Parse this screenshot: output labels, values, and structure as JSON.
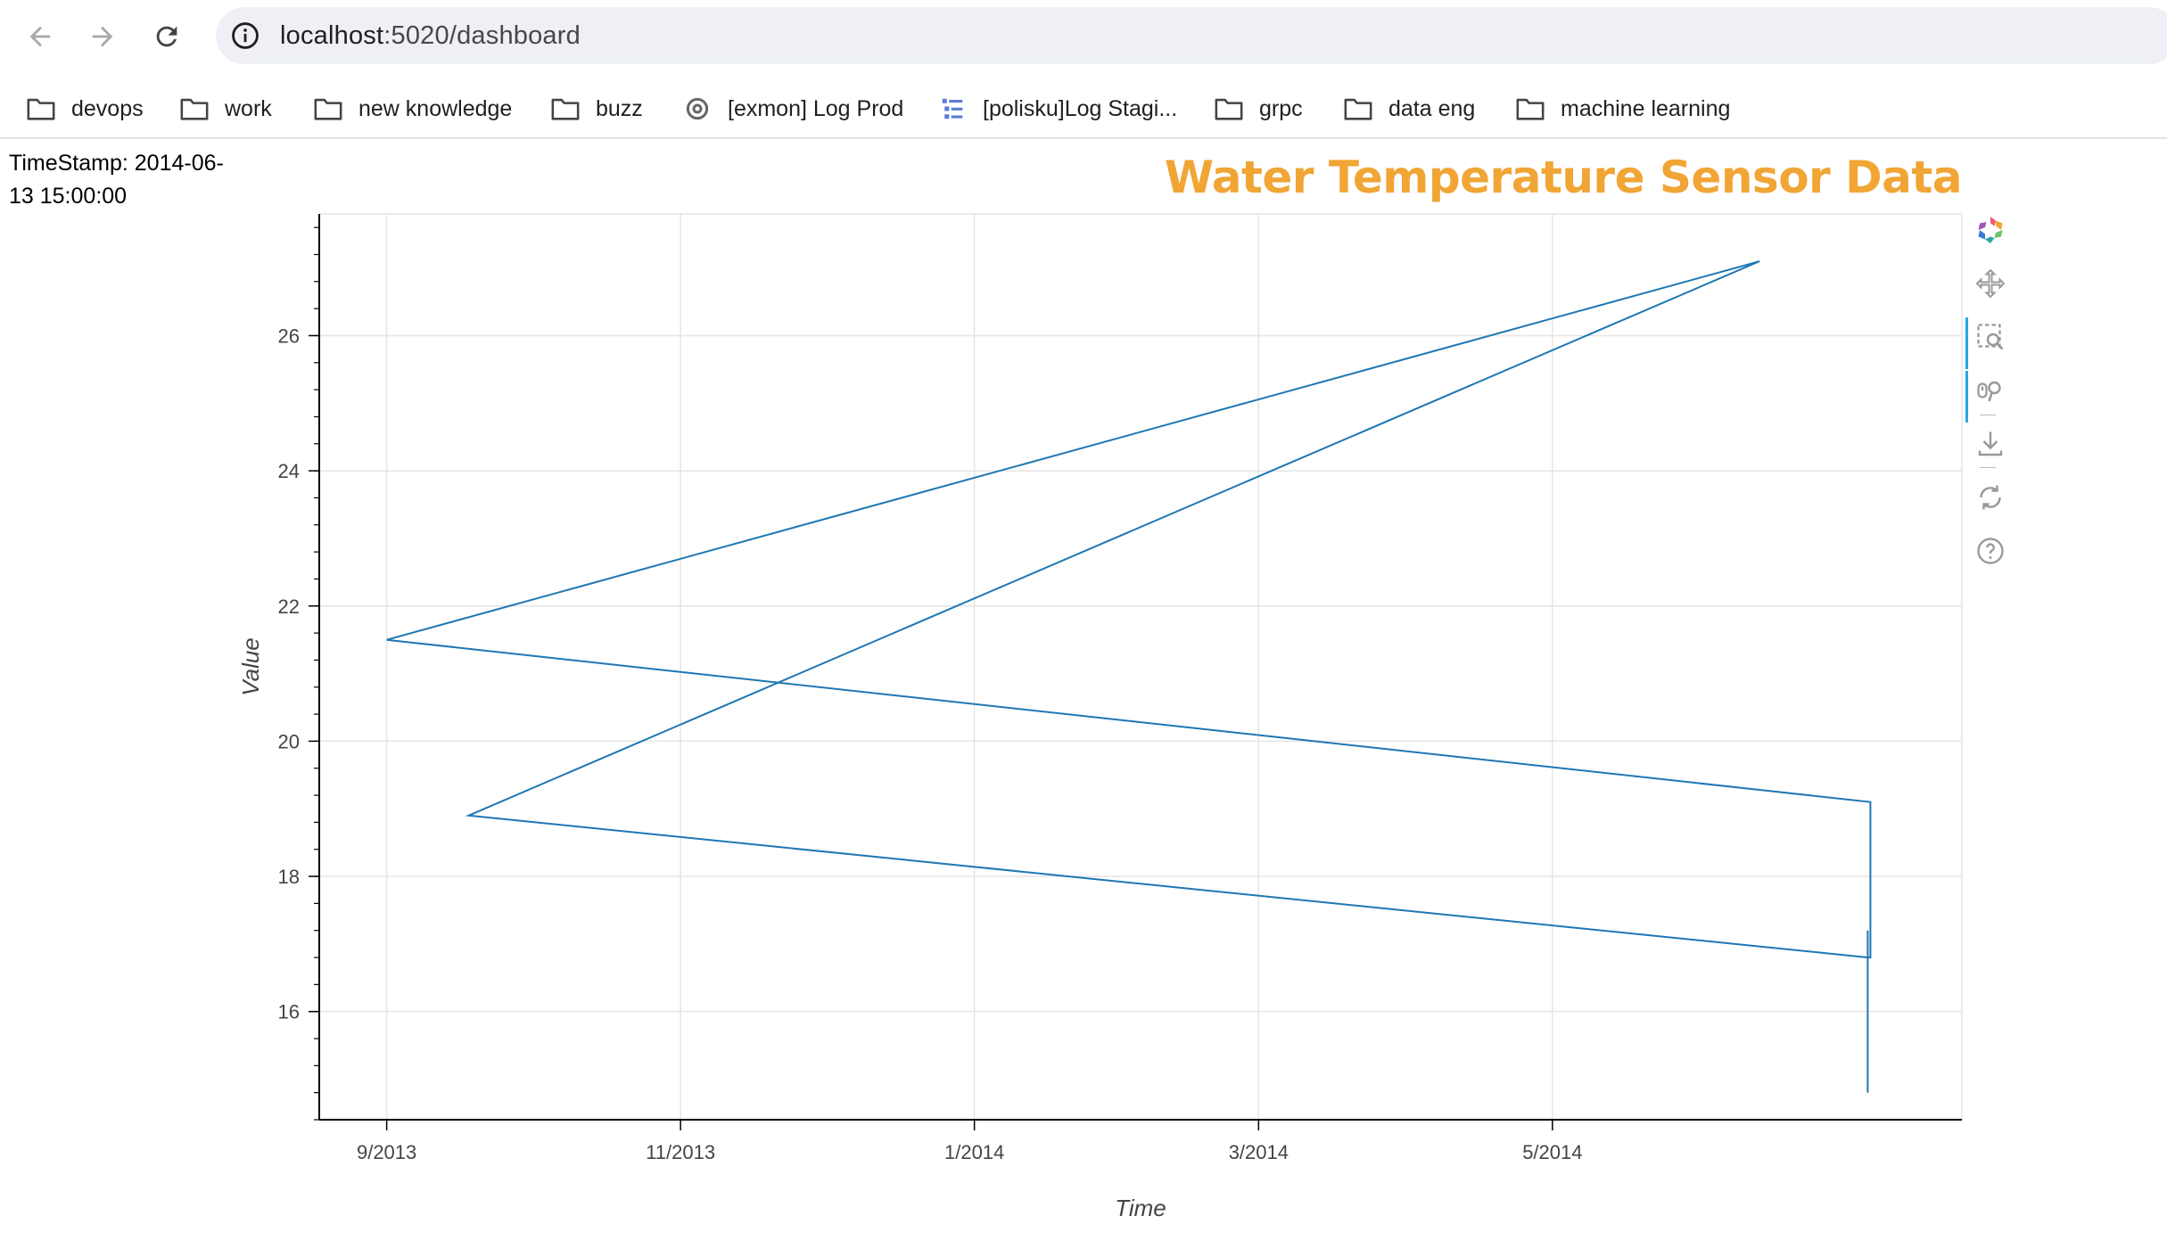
{
  "browser": {
    "url_host": "localhost",
    "url_rest": ":5020/dashboard",
    "bookmarks": [
      {
        "label": "devops",
        "icon": "folder-icon"
      },
      {
        "label": "work",
        "icon": "folder-icon"
      },
      {
        "label": "new knowledge",
        "icon": "folder-icon"
      },
      {
        "label": "buzz",
        "icon": "folder-icon"
      },
      {
        "label": "[exmon] Log Prod",
        "icon": "settings-favicon-icon"
      },
      {
        "label": "[polisku]Log Stagi...",
        "icon": "list-favicon-icon"
      },
      {
        "label": "grpc",
        "icon": "folder-icon"
      },
      {
        "label": "data eng",
        "icon": "folder-icon"
      },
      {
        "label": "machine learning",
        "icon": "folder-icon"
      }
    ]
  },
  "page": {
    "timestamp": "TimeStamp: 2014-06-13 15:00:00"
  },
  "toolbar": {
    "tools": [
      "bokeh-logo-icon",
      "pan-icon",
      "box-zoom-icon",
      "wheel-zoom-icon",
      "save-icon",
      "reset-icon",
      "help-icon"
    ]
  },
  "colors": {
    "title": "#f0a535",
    "line": "#1f77b4",
    "active_tool": "#26aae1"
  },
  "chart_data": {
    "type": "line",
    "title": "Water Temperature Sensor Data",
    "xlabel": "Time",
    "ylabel": "Value",
    "x_ticks": [
      "9/2013",
      "11/2013",
      "1/2014",
      "3/2014",
      "5/2014"
    ],
    "y_ticks": [
      16,
      18,
      20,
      22,
      24,
      26
    ],
    "xlim": [
      "2013-08-18",
      "2014-07-25"
    ],
    "ylim": [
      14.4,
      27.8
    ],
    "grid": true,
    "series": [
      {
        "x": [
          "2013-09-01",
          "2014-06-13",
          "2013-09-18",
          "2014-07-06",
          "2014-07-06",
          "2014-07-06",
          "2014-07-06",
          "2014-07-06",
          "2014-07-06",
          "2013-09-01"
        ],
        "y": [
          21.5,
          27.1,
          18.9,
          16.8,
          17.2,
          14.8,
          16.8,
          16.8,
          19.1,
          21.5
        ]
      }
    ]
  }
}
